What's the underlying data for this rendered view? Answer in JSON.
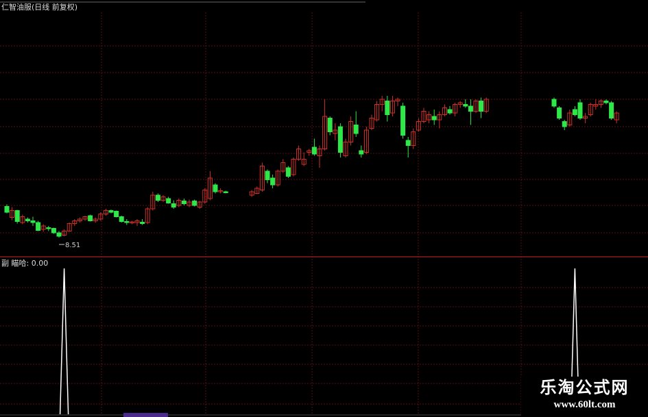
{
  "header": {
    "title": "仁智油服(日线 前复权)"
  },
  "indicator": {
    "label": "副 瞄哈: 0.00"
  },
  "watermark": {
    "name": "乐淘公式网",
    "url": "www.60lt.com"
  },
  "colors": {
    "up": "#d0302a",
    "down": "#2ee84a",
    "grid": "#5a1010",
    "indicator_line": "#ffffff",
    "background": "#000000"
  },
  "chart_data": [
    {
      "type": "candlestick",
      "title": "仁智油服(日线 前复权)",
      "annotations": [
        {
          "text": "8.51",
          "index": 10,
          "kind": "low-marker"
        }
      ],
      "grid": true,
      "ohlc": [
        [
          9.42,
          9.48,
          9.22,
          9.25
        ],
        [
          9.1,
          9.4,
          9.02,
          9.3
        ],
        [
          9.3,
          9.32,
          8.92,
          8.98
        ],
        [
          8.95,
          9.18,
          8.9,
          9.12
        ],
        [
          9.05,
          9.1,
          8.95,
          9.0
        ],
        [
          9.0,
          9.12,
          8.85,
          8.95
        ],
        [
          8.95,
          9.0,
          8.7,
          8.72
        ],
        [
          8.75,
          8.9,
          8.68,
          8.85
        ],
        [
          8.8,
          8.85,
          8.7,
          8.78
        ],
        [
          8.78,
          8.8,
          8.62,
          8.65
        ],
        [
          8.65,
          8.7,
          8.51,
          8.55
        ],
        [
          8.58,
          8.75,
          8.55,
          8.7
        ],
        [
          8.7,
          8.95,
          8.68,
          8.92
        ],
        [
          8.92,
          9.05,
          8.85,
          9.0
        ],
        [
          9.0,
          9.1,
          8.95,
          9.05
        ],
        [
          9.05,
          9.15,
          9.0,
          9.12
        ],
        [
          9.15,
          9.18,
          8.98,
          9.0
        ],
        [
          9.0,
          9.1,
          8.95,
          9.05
        ],
        [
          9.05,
          9.25,
          9.0,
          9.2
        ],
        [
          9.2,
          9.35,
          9.15,
          9.3
        ],
        [
          9.3,
          9.33,
          9.22,
          9.25
        ],
        [
          9.28,
          9.3,
          9.1,
          9.12
        ],
        [
          9.12,
          9.15,
          8.95,
          8.98
        ],
        [
          8.98,
          9.05,
          8.88,
          8.95
        ],
        [
          8.95,
          9.0,
          8.9,
          8.97
        ],
        [
          8.95,
          9.05,
          8.85,
          9.0
        ],
        [
          8.96,
          9.05,
          8.88,
          8.92
        ],
        [
          8.95,
          9.4,
          8.9,
          9.35
        ],
        [
          9.35,
          9.85,
          9.3,
          9.75
        ],
        [
          9.75,
          9.8,
          9.55,
          9.6
        ],
        [
          9.6,
          9.75,
          9.55,
          9.7
        ],
        [
          9.65,
          9.7,
          9.5,
          9.52
        ],
        [
          9.5,
          9.6,
          9.35,
          9.4
        ],
        [
          9.45,
          9.65,
          9.4,
          9.6
        ],
        [
          9.58,
          9.65,
          9.45,
          9.5
        ],
        [
          9.45,
          9.62,
          9.4,
          9.55
        ],
        [
          9.58,
          9.62,
          9.42,
          9.45
        ],
        [
          9.4,
          9.58,
          9.35,
          9.55
        ],
        [
          9.55,
          9.95,
          9.5,
          9.9
        ],
        [
          9.65,
          10.45,
          9.6,
          10.25
        ],
        [
          10.05,
          10.1,
          9.8,
          9.85
        ],
        [
          9.85,
          9.95,
          9.8,
          9.88
        ],
        [
          9.85,
          9.88,
          9.8,
          9.82
        ],
        null,
        null,
        null,
        null,
        [
          9.75,
          9.9,
          9.7,
          9.85
        ],
        [
          9.8,
          10.0,
          9.78,
          9.95
        ],
        [
          9.9,
          10.7,
          9.85,
          10.6
        ],
        [
          10.45,
          10.5,
          10.1,
          10.2
        ],
        [
          10.25,
          10.35,
          9.95,
          10.05
        ],
        [
          10.05,
          10.5,
          10.0,
          10.45
        ],
        [
          10.45,
          10.8,
          10.4,
          10.7
        ],
        [
          10.55,
          10.6,
          10.25,
          10.3
        ],
        [
          10.35,
          10.85,
          10.3,
          10.8
        ],
        [
          10.8,
          11.2,
          10.75,
          11.1
        ],
        [
          10.65,
          11.0,
          10.6,
          10.8
        ],
        [
          11.0,
          11.1,
          10.9,
          11.05
        ],
        [
          11.15,
          11.4,
          10.9,
          10.95
        ],
        [
          10.9,
          11.2,
          10.55,
          11.1
        ],
        [
          11.1,
          12.55,
          11.05,
          12.05
        ],
        [
          12.0,
          12.05,
          11.5,
          11.6
        ],
        [
          11.55,
          11.85,
          11.35,
          11.65
        ],
        [
          11.75,
          11.85,
          10.85,
          11.0
        ],
        [
          10.9,
          11.4,
          10.85,
          11.3
        ],
        [
          11.3,
          12.05,
          11.2,
          11.9
        ],
        [
          11.8,
          12.2,
          11.45,
          11.55
        ],
        [
          11.05,
          11.2,
          10.85,
          10.95
        ],
        [
          11.0,
          11.75,
          10.95,
          11.65
        ],
        [
          11.7,
          12.1,
          11.65,
          12.0
        ],
        [
          11.95,
          12.5,
          11.9,
          12.4
        ],
        [
          12.4,
          12.65,
          12.2,
          12.55
        ],
        [
          12.5,
          12.65,
          11.9,
          12.1
        ],
        [
          12.15,
          12.65,
          12.05,
          12.5
        ],
        [
          12.5,
          12.6,
          12.35,
          12.55
        ],
        [
          12.35,
          12.45,
          11.4,
          11.5
        ],
        [
          11.35,
          11.45,
          10.85,
          11.2
        ],
        [
          11.2,
          11.7,
          11.1,
          11.6
        ],
        [
          11.65,
          12.0,
          11.6,
          11.9
        ],
        [
          11.9,
          12.3,
          11.85,
          12.2
        ],
        [
          11.95,
          12.2,
          11.85,
          12.1
        ],
        [
          12.05,
          12.25,
          11.8,
          11.95
        ],
        [
          11.95,
          12.2,
          11.7,
          12.1
        ],
        [
          12.1,
          12.4,
          12.05,
          12.3
        ],
        [
          12.25,
          12.35,
          12.1,
          12.15
        ],
        [
          12.15,
          12.45,
          12.05,
          12.4
        ],
        [
          12.4,
          12.5,
          12.3,
          12.45
        ],
        [
          12.4,
          12.55,
          12.3,
          12.35
        ],
        [
          12.35,
          12.55,
          11.8,
          12.2
        ],
        [
          12.2,
          12.55,
          12.15,
          12.5
        ],
        [
          12.5,
          12.6,
          12.0,
          12.2
        ],
        [
          12.2,
          12.6,
          12.15,
          12.55
        ],
        null,
        null,
        null,
        null,
        null,
        null,
        null,
        null,
        null,
        null,
        null,
        null,
        [
          12.55,
          12.6,
          12.3,
          12.35
        ],
        [
          12.3,
          12.35,
          11.95,
          12.0
        ],
        [
          11.9,
          11.95,
          11.65,
          11.75
        ],
        [
          11.8,
          12.25,
          11.75,
          12.15
        ],
        [
          12.25,
          12.35,
          12.05,
          12.1
        ],
        [
          12.45,
          12.55,
          11.95,
          12.0
        ],
        [
          12.0,
          12.15,
          11.85,
          12.05
        ],
        [
          12.1,
          12.45,
          12.05,
          12.4
        ],
        [
          12.35,
          12.55,
          12.25,
          12.4
        ],
        [
          12.4,
          12.55,
          12.3,
          12.5
        ],
        [
          12.5,
          12.55,
          12.4,
          12.45
        ],
        [
          12.45,
          12.5,
          11.95,
          12.0
        ],
        [
          11.95,
          12.2,
          11.85,
          12.15
        ]
      ]
    },
    {
      "type": "line",
      "title": "副 瞄哈",
      "current_value": 0.0,
      "spikes": [
        {
          "index": 11,
          "value": 1
        },
        {
          "index": 109,
          "value": 1
        }
      ],
      "baseline": 0
    }
  ]
}
